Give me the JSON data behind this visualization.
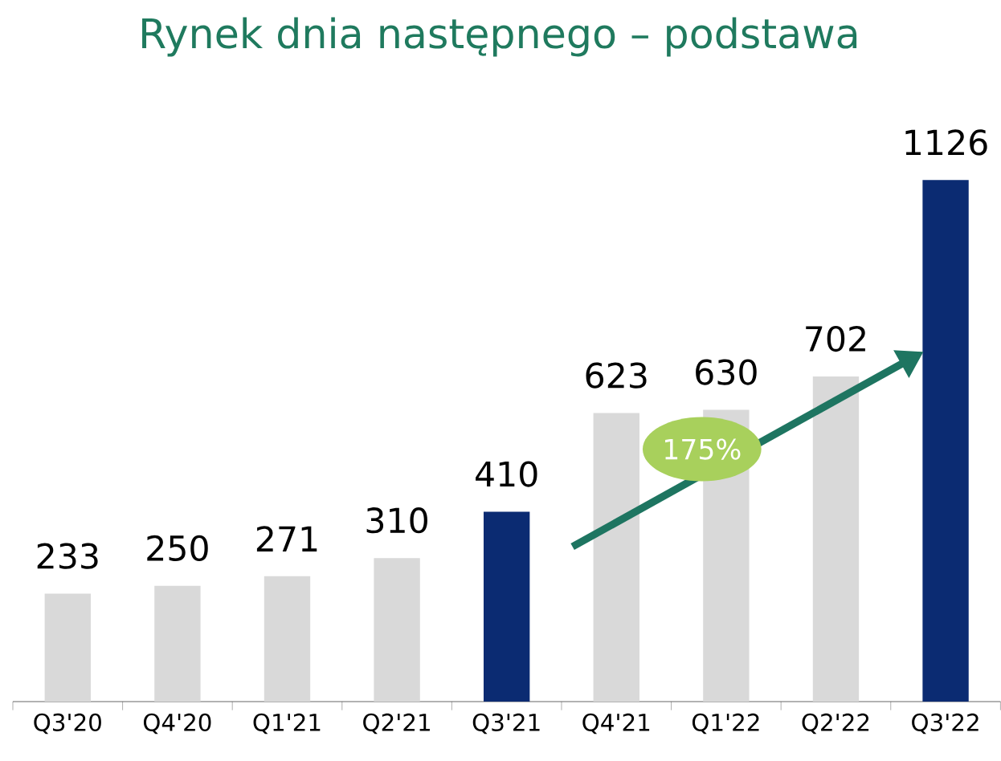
{
  "chart_data": {
    "type": "bar",
    "title": "Rynek dnia następnego – podstawa",
    "categories": [
      "Q3'20",
      "Q4'20",
      "Q1'21",
      "Q2'21",
      "Q3'21",
      "Q4'21",
      "Q1'22",
      "Q2'22",
      "Q3'22"
    ],
    "values": [
      233,
      250,
      271,
      310,
      410,
      623,
      630,
      702,
      1126
    ],
    "colors": [
      "#d9d9d9",
      "#d9d9d9",
      "#d9d9d9",
      "#d9d9d9",
      "#0b2b72",
      "#d9d9d9",
      "#d9d9d9",
      "#d9d9d9",
      "#0b2b72"
    ],
    "data_labels": true,
    "annotations": [
      "175%"
    ]
  }
}
